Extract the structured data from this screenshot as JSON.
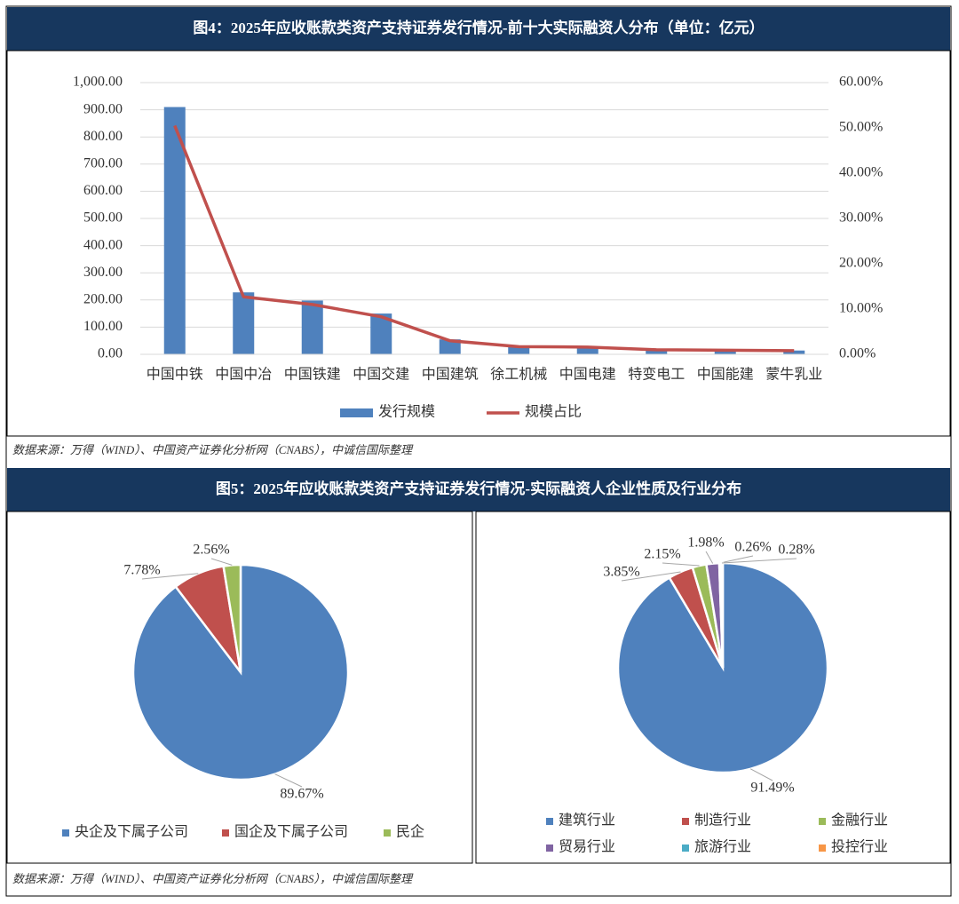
{
  "chart_data": [
    {
      "type": "bar",
      "title": "图4：2025年应收账款类资产支持证券发行情况-前十大实际融资人分布（单位：亿元）",
      "categories": [
        "中国中铁",
        "中国中冶",
        "中国铁建",
        "中国交建",
        "中国建筑",
        "徐工机械",
        "中国电建",
        "特变电工",
        "中国能建",
        "蒙牛乳业"
      ],
      "series": [
        {
          "name": "发行规模",
          "color": "#4f81bd",
          "values": [
            910,
            228,
            198,
            150,
            55,
            30,
            28,
            18,
            16,
            14
          ]
        },
        {
          "name": "规模占比",
          "color": "#c0504d",
          "type": "line",
          "axis": "y2",
          "values": [
            50.5,
            12.7,
            11.0,
            8.3,
            3.0,
            1.7,
            1.6,
            1.0,
            0.9,
            0.8
          ]
        }
      ],
      "ylim": [
        0,
        1000
      ],
      "yticks": [
        {
          "value": 0,
          "label": "0.00"
        },
        {
          "value": 100,
          "label": "100.00"
        },
        {
          "value": 200,
          "label": "200.00"
        },
        {
          "value": 300,
          "label": "300.00"
        },
        {
          "value": 400,
          "label": "400.00"
        },
        {
          "value": 500,
          "label": "500.00"
        },
        {
          "value": 600,
          "label": "600.00"
        },
        {
          "value": 700,
          "label": "700.00"
        },
        {
          "value": 800,
          "label": "800.00"
        },
        {
          "value": 900,
          "label": "900.00"
        },
        {
          "value": 1000,
          "label": "1,000.00"
        }
      ],
      "y2lim": [
        0,
        60
      ],
      "y2ticks": [
        {
          "value": 0,
          "label": "0.00%"
        },
        {
          "value": 10,
          "label": "10.00%"
        },
        {
          "value": 20,
          "label": "20.00%"
        },
        {
          "value": 30,
          "label": "30.00%"
        },
        {
          "value": 40,
          "label": "40.00%"
        },
        {
          "value": 50,
          "label": "50.00%"
        },
        {
          "value": 60,
          "label": "60.00%"
        }
      ],
      "grid": true,
      "legend": "bottom",
      "source": "数据来源：万得（WIND）、中国资产证券化分析网（CNABS），中诚信国际整理"
    },
    {
      "type": "pie",
      "title": "图5：2025年应收账款类资产支持证券发行情况-实际融资人企业性质及行业分布",
      "categories": [
        "央企及下属子公司",
        "国企及下属子公司",
        "民企"
      ],
      "values": [
        89.67,
        7.78,
        2.56
      ],
      "value_labels": [
        "89.67%",
        "7.78%",
        "2.56%"
      ],
      "colors": [
        "#4f81bd",
        "#c0504d",
        "#9bbb59"
      ],
      "legend": "bottom",
      "source": "数据来源：万得（WIND）、中国资产证券化分析网（CNABS），中诚信国际整理"
    },
    {
      "type": "pie",
      "categories": [
        "建筑行业",
        "制造行业",
        "金融行业",
        "贸易行业",
        "旅游行业",
        "投控行业"
      ],
      "values": [
        91.49,
        3.85,
        2.15,
        1.98,
        0.26,
        0.28
      ],
      "value_labels": [
        "91.49%",
        "3.85%",
        "2.15%",
        "1.98%",
        "0.26%",
        "0.28%"
      ],
      "colors": [
        "#4f81bd",
        "#c0504d",
        "#9bbb59",
        "#8064a2",
        "#4bacc6",
        "#f79646"
      ],
      "legend": "bottom"
    }
  ]
}
